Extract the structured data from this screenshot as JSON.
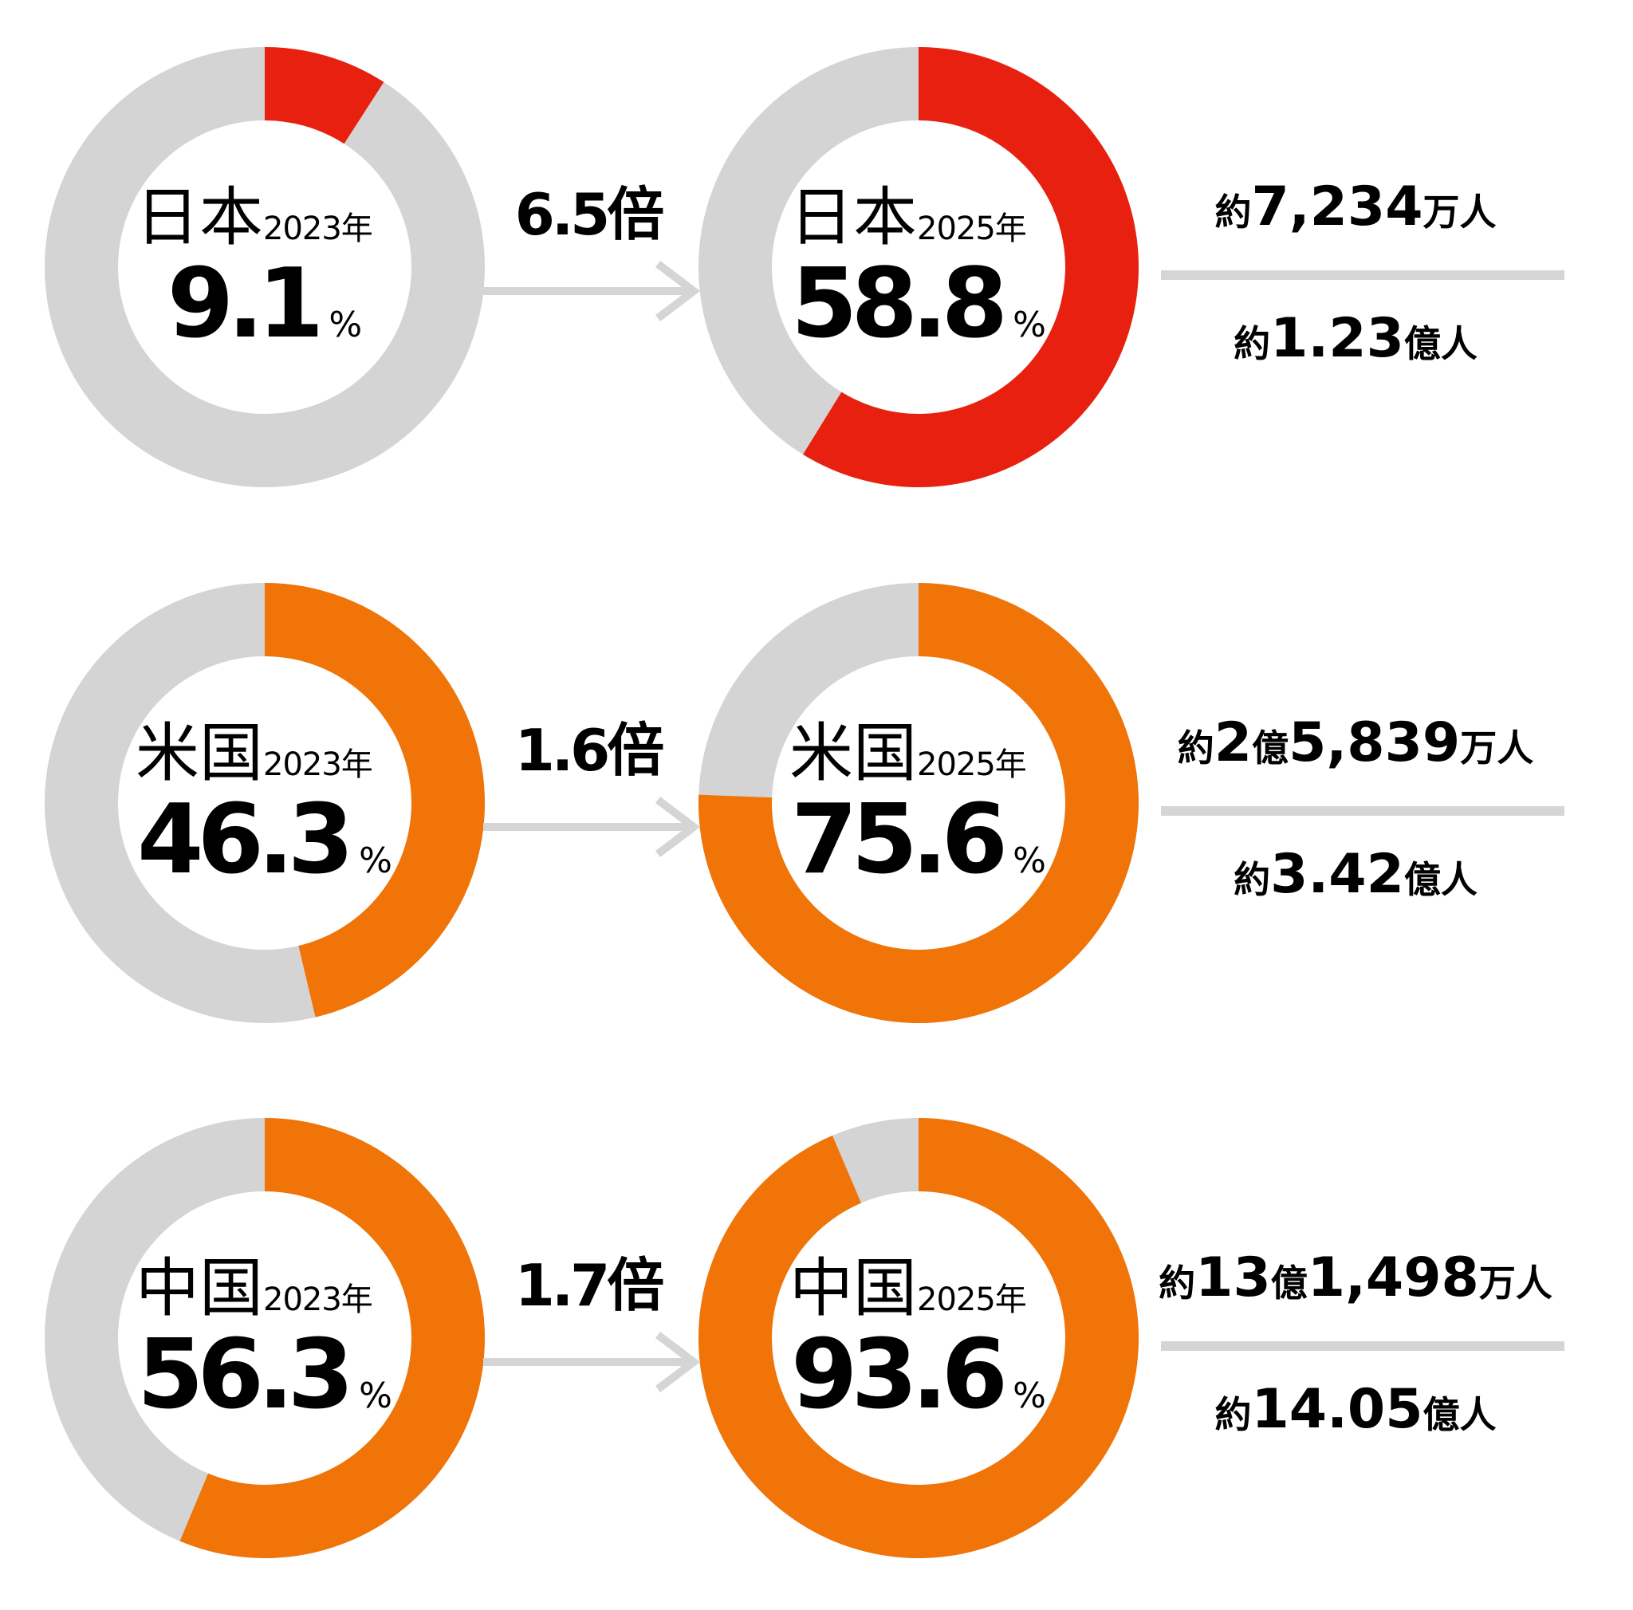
{
  "colors": {
    "track": "#d4d4d4",
    "japan": "#e8200f",
    "other": "#f07407",
    "arrow": "#d5d5d5"
  },
  "rows": [
    {
      "country": "日本",
      "before": {
        "year": "2023年",
        "value": 9.1,
        "label": "9.1"
      },
      "after": {
        "year": "2025年",
        "value": 58.8,
        "label": "58.8"
      },
      "multiplier": "6.5倍",
      "unit": "%",
      "color_key": "japan",
      "fraction_top": [
        {
          "t": "約",
          "s": "small"
        },
        {
          "t": "7,234",
          "s": "big"
        },
        {
          "t": "万人",
          "s": "small"
        }
      ],
      "fraction_bottom": [
        {
          "t": "約",
          "s": "small"
        },
        {
          "t": "1.23",
          "s": "big"
        },
        {
          "t": "億人",
          "s": "small"
        }
      ]
    },
    {
      "country": "米国",
      "before": {
        "year": "2023年",
        "value": 46.3,
        "label": "46.3"
      },
      "after": {
        "year": "2025年",
        "value": 75.6,
        "label": "75.6"
      },
      "multiplier": "1.6倍",
      "unit": "%",
      "color_key": "other",
      "fraction_top": [
        {
          "t": "約",
          "s": "small"
        },
        {
          "t": "2",
          "s": "big"
        },
        {
          "t": "億",
          "s": "small"
        },
        {
          "t": "5,839",
          "s": "big"
        },
        {
          "t": "万人",
          "s": "small"
        }
      ],
      "fraction_bottom": [
        {
          "t": "約",
          "s": "small"
        },
        {
          "t": "3.42",
          "s": "big"
        },
        {
          "t": "億人",
          "s": "small"
        }
      ]
    },
    {
      "country": "中国",
      "before": {
        "year": "2023年",
        "value": 56.3,
        "label": "56.3"
      },
      "after": {
        "year": "2025年",
        "value": 93.6,
        "label": "93.6"
      },
      "multiplier": "1.7倍",
      "unit": "%",
      "color_key": "other",
      "fraction_top": [
        {
          "t": "約",
          "s": "small"
        },
        {
          "t": "13",
          "s": "big"
        },
        {
          "t": "億",
          "s": "small"
        },
        {
          "t": "1,498",
          "s": "big"
        },
        {
          "t": "万人",
          "s": "small"
        }
      ],
      "fraction_bottom": [
        {
          "t": "約",
          "s": "small"
        },
        {
          "t": "14.05",
          "s": "big"
        },
        {
          "t": "億人",
          "s": "small"
        }
      ]
    }
  ],
  "chart_data": {
    "type": "pie",
    "style": "donut",
    "unit": "%",
    "series": [
      {
        "categories": [
          "日本",
          "米国",
          "中国"
        ],
        "year": "2023年",
        "values": [
          9.1,
          46.3,
          56.3
        ]
      },
      {
        "categories": [
          "日本",
          "米国",
          "中国"
        ],
        "year": "2025年",
        "values": [
          58.8,
          75.6,
          93.6
        ]
      }
    ],
    "multipliers": [
      "6.5倍",
      "1.6倍",
      "1.7倍"
    ]
  }
}
